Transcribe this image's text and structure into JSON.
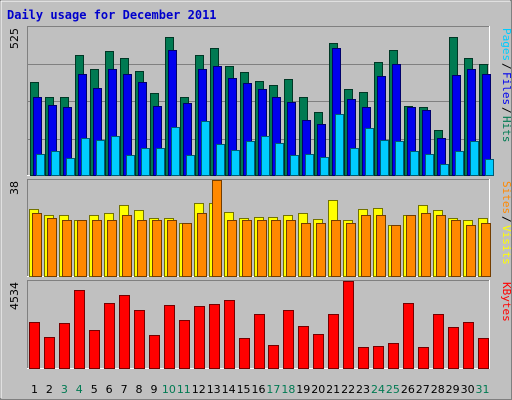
{
  "chart_data": [
    {
      "type": "bar",
      "title": "Daily usage for December 2011",
      "panel": "hits-files-pages",
      "categories": [
        "1",
        "2",
        "3",
        "4",
        "5",
        "6",
        "7",
        "8",
        "9",
        "10",
        "11",
        "12",
        "13",
        "14",
        "15",
        "16",
        "17",
        "18",
        "19",
        "20",
        "21",
        "22",
        "23",
        "24",
        "25",
        "26",
        "27",
        "28",
        "29",
        "30",
        "31"
      ],
      "weekend_days": [
        3,
        4,
        10,
        11,
        17,
        18,
        24,
        25,
        31
      ],
      "ymax_label": "525",
      "ylim": [
        0,
        525
      ],
      "series": [
        {
          "name": "Hits",
          "color": "#007a52",
          "values": [
            330,
            275,
            275,
            425,
            375,
            440,
            415,
            370,
            290,
            490,
            275,
            425,
            450,
            385,
            365,
            335,
            320,
            340,
            275,
            225,
            470,
            305,
            295,
            400,
            445,
            245,
            240,
            160,
            490,
            415,
            395
          ]
        },
        {
          "name": "Files",
          "color": "#0000ee",
          "values": [
            275,
            250,
            240,
            360,
            310,
            375,
            360,
            330,
            245,
            445,
            255,
            375,
            385,
            345,
            325,
            305,
            275,
            260,
            195,
            180,
            450,
            270,
            240,
            350,
            395,
            240,
            230,
            130,
            355,
            375,
            360
          ]
        },
        {
          "name": "Pages",
          "color": "#00ccff",
          "values": [
            75,
            85,
            60,
            130,
            125,
            140,
            70,
            95,
            95,
            170,
            70,
            190,
            110,
            90,
            120,
            140,
            115,
            70,
            75,
            65,
            215,
            95,
            165,
            125,
            120,
            85,
            75,
            40,
            85,
            120,
            55
          ]
        }
      ]
    },
    {
      "type": "bar",
      "panel": "visits-sites",
      "categories": [
        "1",
        "2",
        "3",
        "4",
        "5",
        "6",
        "7",
        "8",
        "9",
        "10",
        "11",
        "12",
        "13",
        "14",
        "15",
        "16",
        "17",
        "18",
        "19",
        "20",
        "21",
        "22",
        "23",
        "24",
        "25",
        "26",
        "27",
        "28",
        "29",
        "30",
        "31"
      ],
      "ymax_label": "38",
      "ylim": [
        0,
        38
      ],
      "series": [
        {
          "name": "Visits",
          "color": "#ffff00",
          "values": [
            26.5,
            24,
            24,
            22,
            24,
            25,
            28,
            26,
            23,
            23,
            21,
            29,
            29,
            25.5,
            23,
            23.5,
            23.5,
            24,
            25,
            22.5,
            30,
            22,
            26.5,
            27,
            20,
            24,
            28,
            26,
            23,
            22,
            23
          ]
        },
        {
          "name": "Sites",
          "color": "#ff8800",
          "values": [
            25,
            23,
            22,
            22,
            22,
            22,
            24,
            22,
            22,
            22,
            21,
            25,
            38,
            22,
            22,
            22,
            22,
            22,
            21,
            21,
            22,
            21,
            24,
            24,
            20,
            24,
            25,
            24,
            22,
            20,
            21
          ]
        }
      ]
    },
    {
      "type": "bar",
      "panel": "kbytes",
      "categories": [
        "1",
        "2",
        "3",
        "4",
        "5",
        "6",
        "7",
        "8",
        "9",
        "10",
        "11",
        "12",
        "13",
        "14",
        "15",
        "16",
        "17",
        "18",
        "19",
        "20",
        "21",
        "22",
        "23",
        "24",
        "25",
        "26",
        "27",
        "28",
        "29",
        "30",
        "31"
      ],
      "ymax_label": "4534",
      "ylim": [
        0,
        4534
      ],
      "series": [
        {
          "name": "KBytes",
          "color": "#ff0000",
          "values": [
            2420,
            1620,
            2350,
            4050,
            1980,
            3370,
            3800,
            3010,
            1700,
            3300,
            2500,
            3220,
            3330,
            3540,
            1550,
            2800,
            1200,
            3030,
            2180,
            1760,
            2840,
            4534,
            1080,
            1170,
            1320,
            3370,
            1080,
            2800,
            2120,
            2400,
            1550
          ]
        }
      ]
    }
  ]
}
